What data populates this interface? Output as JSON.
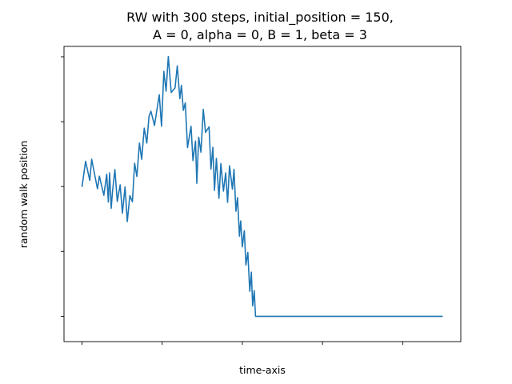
{
  "chart_data": {
    "type": "line",
    "title_lines": [
      "RW with 300 steps, initial_position = 150,",
      "A = 0, alpha = 0, B = 1, beta = 3"
    ],
    "xlabel": "time-axis",
    "ylabel": "random walk position",
    "tick_labels_visible": false,
    "grid": false,
    "legend": "none",
    "x_tick_count": 5,
    "y_tick_count": 5,
    "series": [
      {
        "color": "#1f77b4",
        "x": [
          0,
          2.2,
          4.8,
          6,
          9.6,
          10.8,
          13.6,
          15.4,
          16.4,
          17.2,
          18.2,
          19,
          20.5,
          22,
          23.8,
          25.2,
          26.8,
          28.2,
          29.8,
          31.4,
          32.8,
          34.2,
          35.8,
          37.2,
          38.8,
          40.4,
          41.8,
          43,
          45.2,
          48.2,
          49.6,
          51,
          52.4,
          53.8,
          55.6,
          58,
          59.4,
          61,
          62,
          63.2,
          64.4,
          65.8,
          68,
          69.2,
          70.8,
          71.6,
          72.8,
          74.2,
          75.6,
          77,
          79.2,
          80.4,
          81.6,
          82.6,
          83.8,
          85.4,
          86.6,
          88.2,
          89.6,
          90.8,
          92,
          93.8,
          94.8,
          96,
          97,
          98.2,
          99,
          100,
          101.2,
          102.2,
          103.4,
          104.6,
          105.6,
          106.4,
          107.4,
          108.2,
          225
        ],
        "y": [
          0.567,
          0.646,
          0.587,
          0.652,
          0.561,
          0.6,
          0.541,
          0.606,
          0.52,
          0.61,
          0.501,
          0.552,
          0.62,
          0.522,
          0.573,
          0.486,
          0.567,
          0.46,
          0.54,
          0.521,
          0.64,
          0.599,
          0.702,
          0.652,
          0.748,
          0.702,
          0.785,
          0.8,
          0.756,
          0.851,
          0.754,
          0.923,
          0.862,
          0.969,
          0.858,
          0.872,
          0.94,
          0.839,
          0.88,
          0.803,
          0.826,
          0.688,
          0.754,
          0.648,
          0.708,
          0.578,
          0.72,
          0.674,
          0.806,
          0.735,
          0.752,
          0.622,
          0.689,
          0.556,
          0.655,
          0.532,
          0.639,
          0.554,
          0.61,
          0.519,
          0.632,
          0.56,
          0.621,
          0.492,
          0.534,
          0.415,
          0.462,
          0.382,
          0.432,
          0.326,
          0.365,
          0.245,
          0.304,
          0.2,
          0.247,
          0.168,
          0.168
        ]
      }
    ]
  }
}
